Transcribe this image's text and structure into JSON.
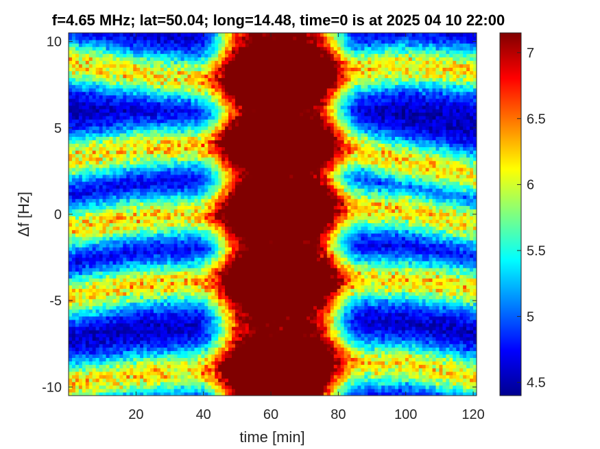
{
  "chart_data": {
    "type": "heatmap",
    "title": "f=4.65 MHz;  lat=50.04; long=14.48, time=0 is at 2025 04 10 22:00",
    "xlabel": "time [min]",
    "ylabel": "Δf [Hz]",
    "xlim": [
      0,
      121
    ],
    "ylim": [
      -10.5,
      10.5
    ],
    "xticks": [
      20,
      40,
      60,
      80,
      100,
      120
    ],
    "yticks": [
      -10,
      -5,
      0,
      5,
      10
    ],
    "colorbar": {
      "range": [
        4.4,
        7.15
      ],
      "ticks": [
        4.5,
        5,
        5.5,
        6,
        6.5,
        7
      ],
      "colormap": "jet"
    },
    "bands": [
      {
        "name": "band_+9",
        "points": [
          [
            0,
            8.8
          ],
          [
            20,
            8.2
          ],
          [
            40,
            7.8
          ],
          [
            60,
            8.0
          ],
          [
            80,
            8.2
          ],
          [
            100,
            8.6
          ],
          [
            121,
            8.3
          ]
        ]
      },
      {
        "name": "band_+3.5",
        "points": [
          [
            0,
            3.2
          ],
          [
            20,
            3.8
          ],
          [
            40,
            4.0
          ],
          [
            60,
            4.2
          ],
          [
            80,
            4.0
          ],
          [
            100,
            3.0
          ],
          [
            121,
            2.3
          ]
        ]
      },
      {
        "name": "band_0",
        "points": [
          [
            0,
            -0.8
          ],
          [
            20,
            -0.2
          ],
          [
            40,
            0.0
          ],
          [
            60,
            0.3
          ],
          [
            80,
            0.4
          ],
          [
            100,
            0.2
          ],
          [
            121,
            -0.6
          ]
        ]
      },
      {
        "name": "band_-4",
        "points": [
          [
            0,
            -4.8
          ],
          [
            20,
            -4.1
          ],
          [
            40,
            -3.9
          ],
          [
            60,
            -3.9
          ],
          [
            80,
            -3.8
          ],
          [
            100,
            -3.8
          ],
          [
            121,
            -4.3
          ]
        ]
      },
      {
        "name": "band_-9.5",
        "points": [
          [
            0,
            -9.8
          ],
          [
            20,
            -9.3
          ],
          [
            40,
            -9.0
          ],
          [
            60,
            -9.0
          ],
          [
            80,
            -8.6
          ],
          [
            100,
            -8.7
          ],
          [
            121,
            -9.4
          ]
        ]
      }
    ],
    "diffuse_region": {
      "x_range": [
        45,
        80
      ]
    },
    "grid": false,
    "legend": "none"
  }
}
